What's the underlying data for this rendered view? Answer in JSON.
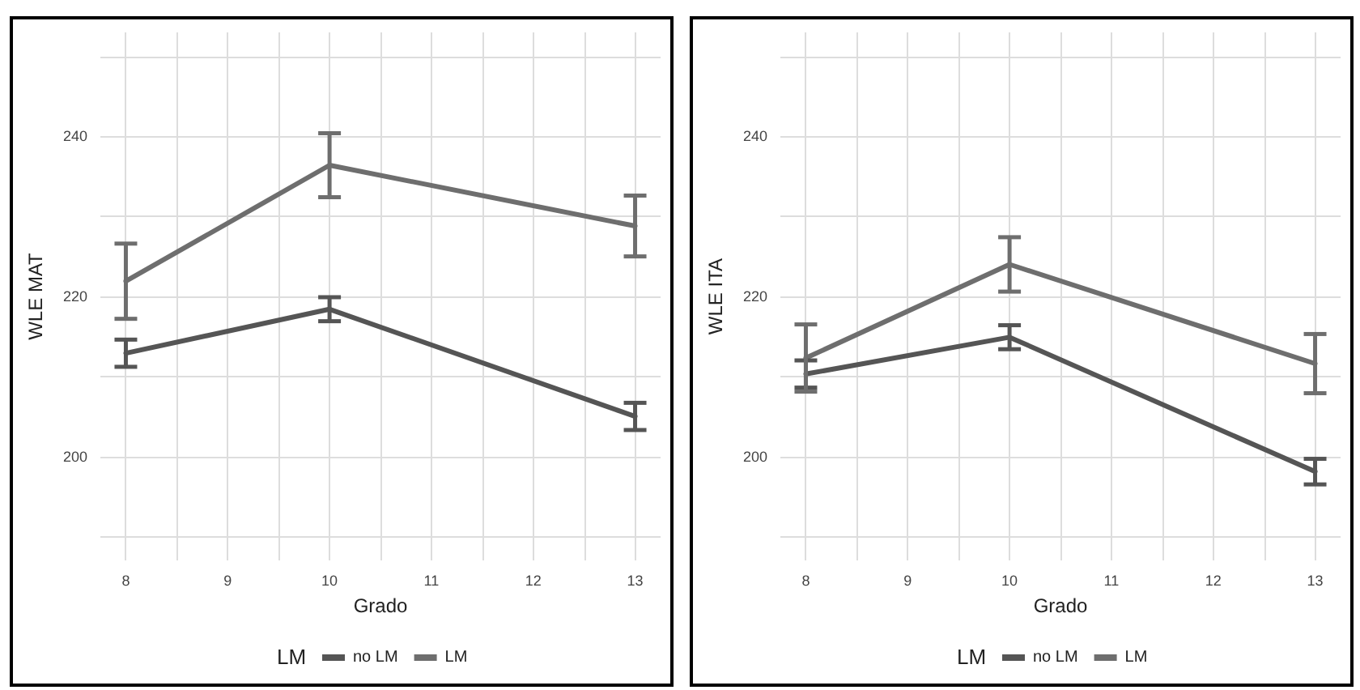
{
  "chart_data": [
    {
      "type": "line",
      "xlabel": "Grado",
      "ylabel": "WLE MAT",
      "legend_title": "LM",
      "legend": "bottom",
      "grid": true,
      "xlim": [
        7.75,
        13.25
      ],
      "ylim": [
        187,
        253
      ],
      "xticks": [
        8,
        {
          "value": 8.5,
          "label": null
        },
        9,
        {
          "value": 9.5,
          "label": null
        },
        10,
        {
          "value": 10.5,
          "label": null
        },
        11,
        {
          "value": 11.5,
          "label": null
        },
        12,
        {
          "value": 12.5,
          "label": null
        },
        13
      ],
      "yticks": [
        {
          "value": 190,
          "label": null
        },
        200,
        {
          "value": 210,
          "label": null
        },
        220,
        {
          "value": 230,
          "label": null
        },
        240,
        {
          "value": 250,
          "label": null
        }
      ],
      "series": [
        {
          "name": "no LM",
          "color": "#555555",
          "x": [
            8,
            10,
            13
          ],
          "values": [
            212.9,
            218.4,
            205.0
          ],
          "errors": [
            1.7,
            1.5,
            1.7
          ]
        },
        {
          "name": "LM",
          "color": "#6e6e6e",
          "x": [
            8,
            10,
            13
          ],
          "values": [
            221.9,
            236.4,
            228.8
          ],
          "errors": [
            4.7,
            4.0,
            3.8
          ]
        }
      ]
    },
    {
      "type": "line",
      "xlabel": "Grado",
      "ylabel": "WLE ITA",
      "legend_title": "LM",
      "legend": "bottom",
      "grid": true,
      "xlim": [
        7.75,
        13.25
      ],
      "ylim": [
        187,
        253
      ],
      "xticks": [
        8,
        {
          "value": 8.5,
          "label": null
        },
        9,
        {
          "value": 9.5,
          "label": null
        },
        10,
        {
          "value": 10.5,
          "label": null
        },
        11,
        {
          "value": 11.5,
          "label": null
        },
        12,
        {
          "value": 12.5,
          "label": null
        },
        13
      ],
      "yticks": [
        {
          "value": 190,
          "label": null
        },
        200,
        {
          "value": 210,
          "label": null
        },
        220,
        {
          "value": 230,
          "label": null
        },
        240,
        {
          "value": 250,
          "label": null
        }
      ],
      "series": [
        {
          "name": "no LM",
          "color": "#555555",
          "x": [
            8,
            10,
            13
          ],
          "values": [
            210.3,
            214.9,
            198.1
          ],
          "errors": [
            1.7,
            1.5,
            1.6
          ]
        },
        {
          "name": "LM",
          "color": "#6e6e6e",
          "x": [
            8,
            10,
            13
          ],
          "values": [
            212.3,
            224.0,
            211.6
          ],
          "errors": [
            4.2,
            3.4,
            3.7
          ]
        }
      ]
    }
  ]
}
